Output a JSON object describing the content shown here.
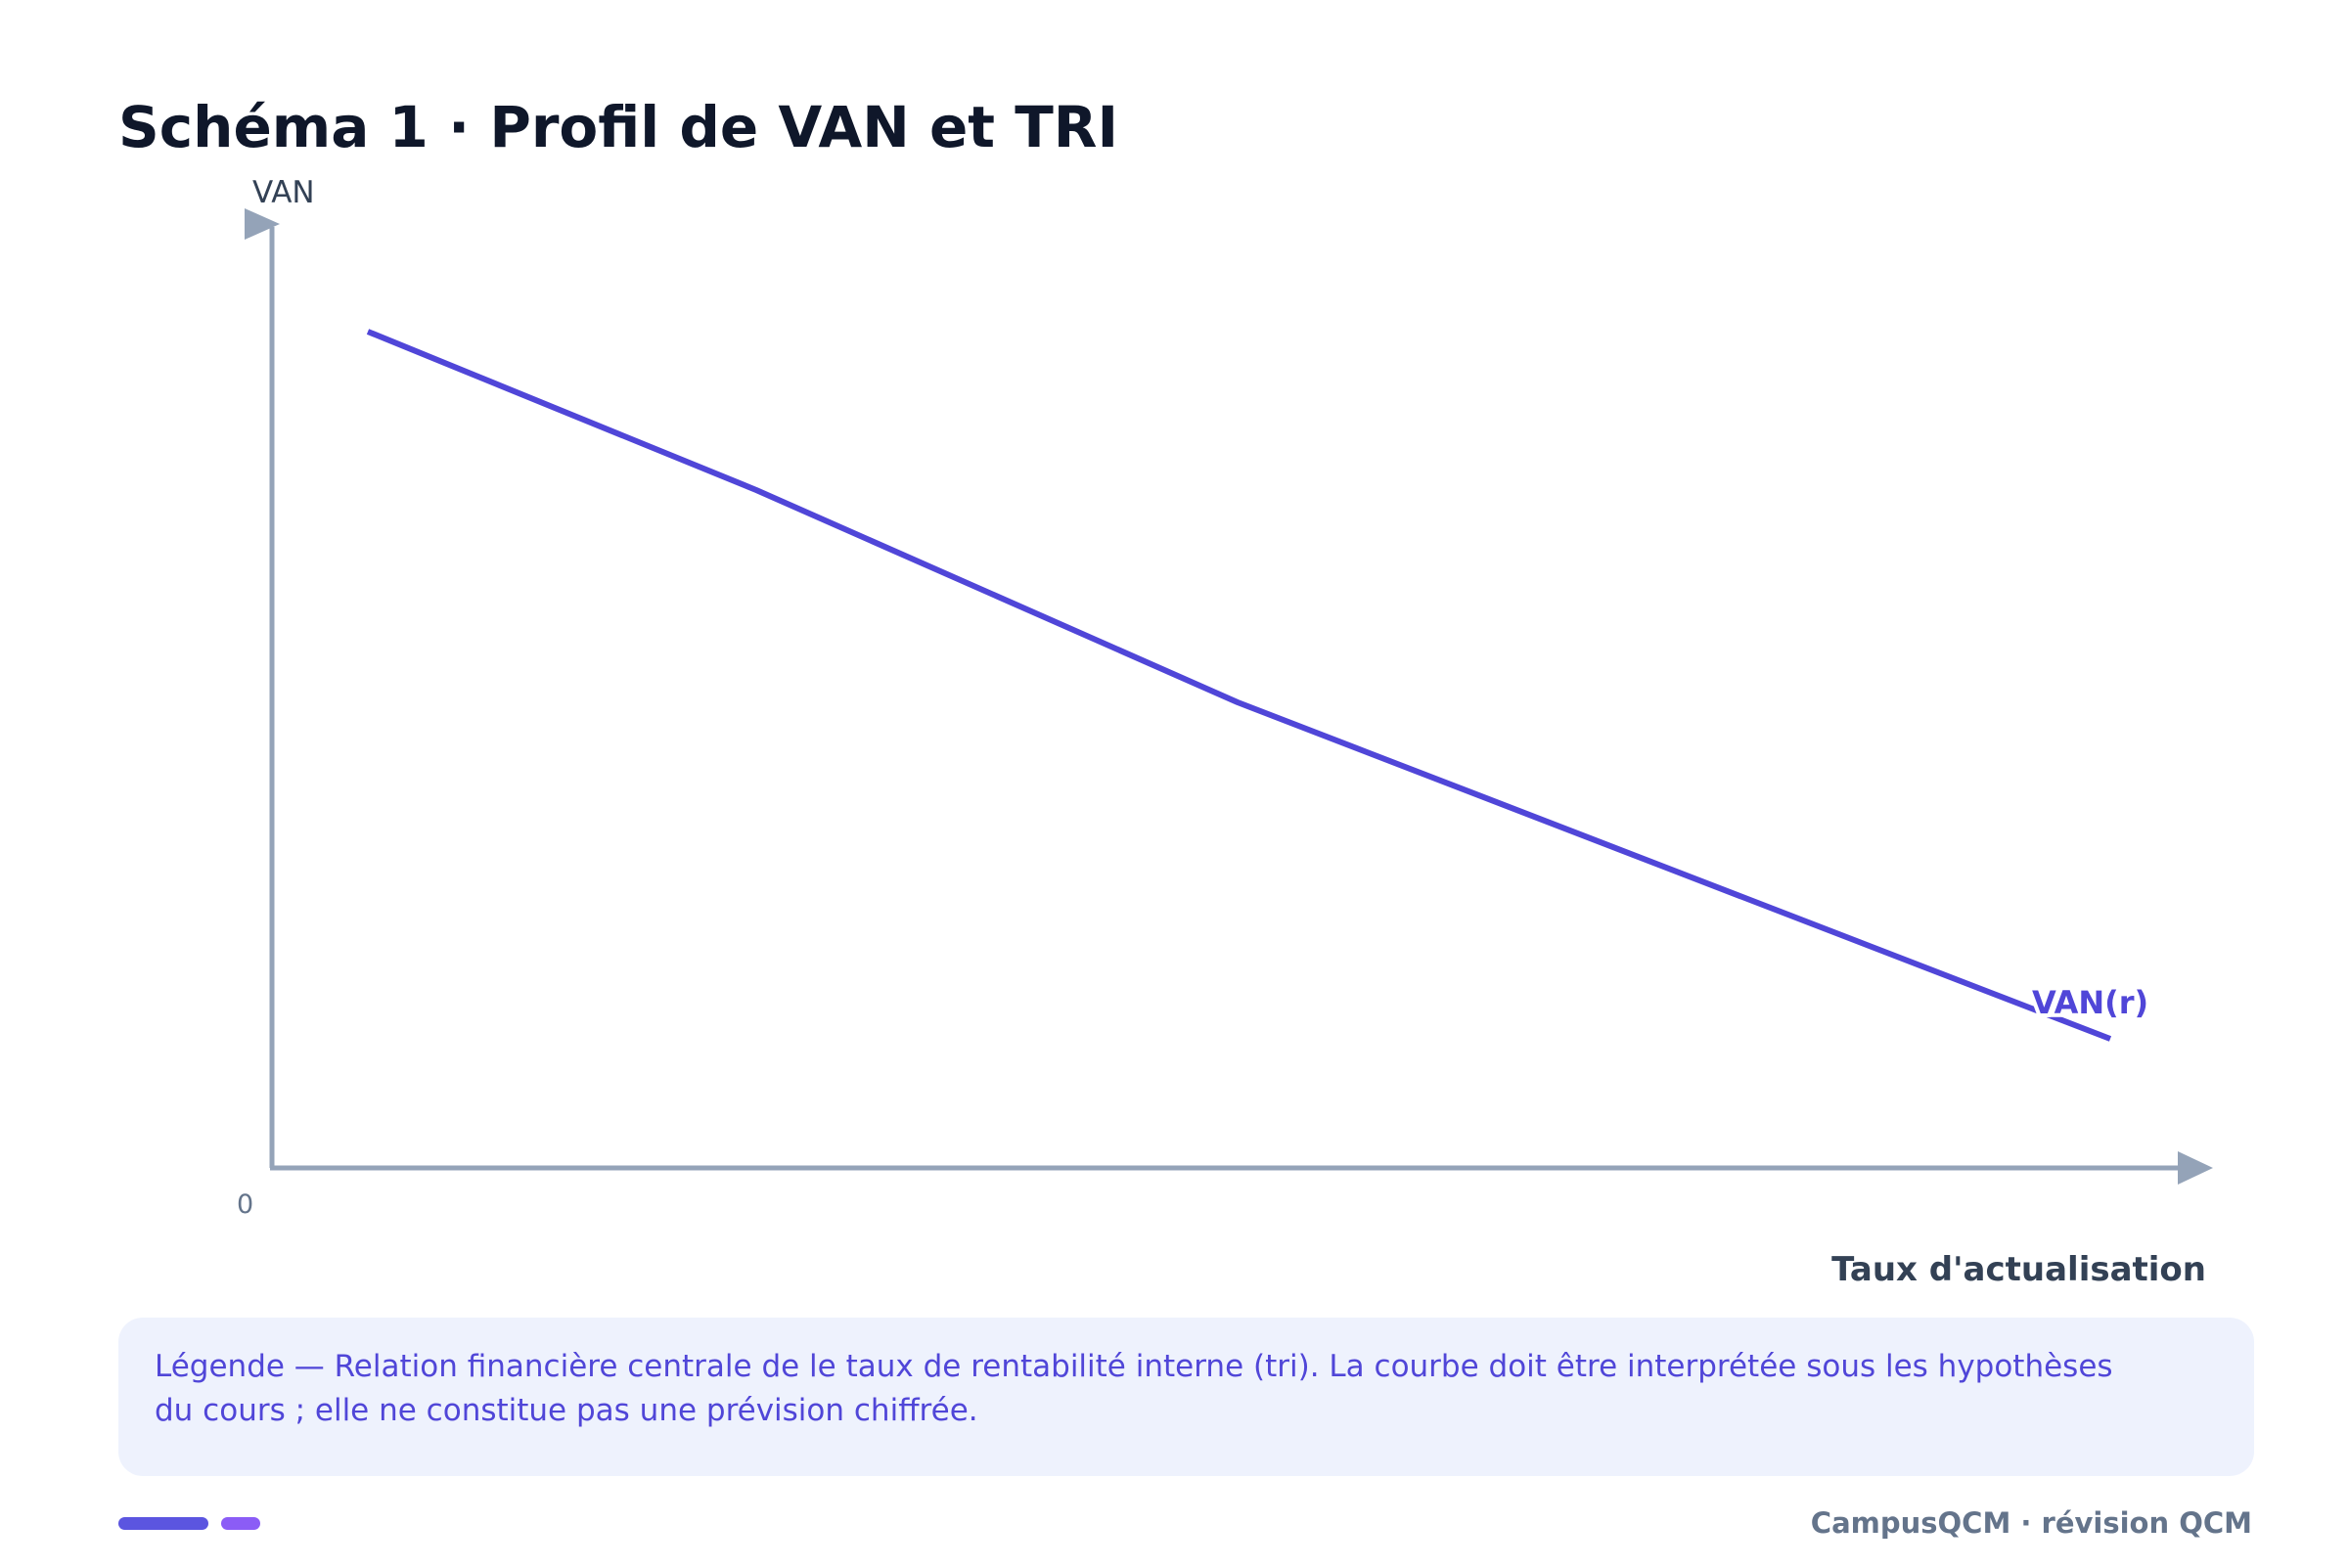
{
  "header": {
    "title": "Schéma 1 · Profil de VAN et TRI"
  },
  "diagram": {
    "y_axis_label": "VAN",
    "origin_label": "0",
    "curve_label": "VAN(r)",
    "x_axis_label": "Taux d'actualisation"
  },
  "legend": {
    "lines": [
      "Légende — Relation financière centrale de le taux de rentabilité interne (tri). La courbe doit être interprétée sous les hypothèses",
      "du cours ; elle ne constitue pas une prévision chiffrée."
    ]
  },
  "footer": {
    "brand": "CampusQCM · révision QCM"
  }
}
